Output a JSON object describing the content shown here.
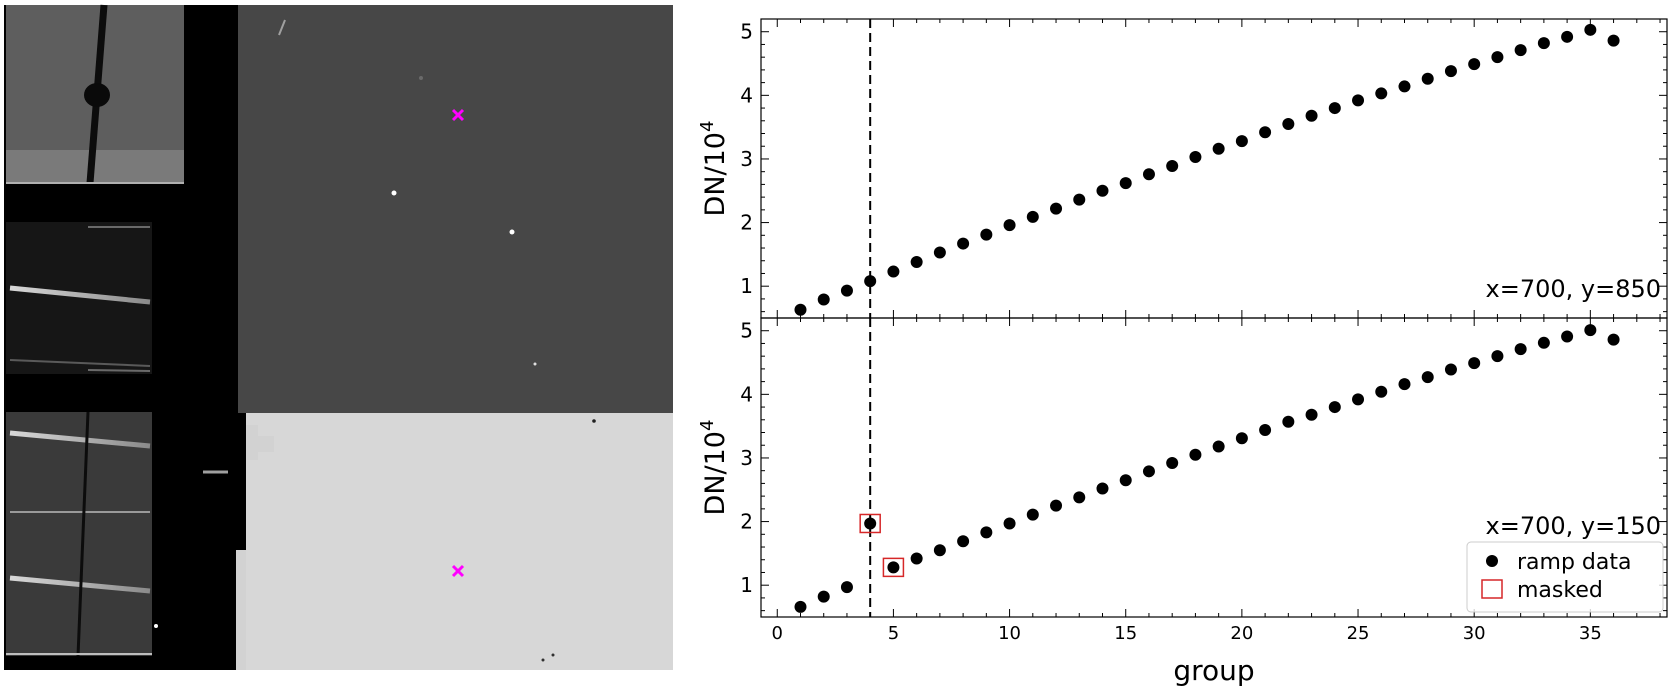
{
  "image_panel": {
    "markers": [
      {
        "label": "x=700, y=850",
        "color": "#ff00ff"
      },
      {
        "label": "x=700, y=150",
        "color": "#ff00ff"
      }
    ],
    "colors": {
      "dark_region": "#474747",
      "bright_region": "#d7d7d7",
      "frame": "#000000"
    }
  },
  "chart_data": [
    {
      "type": "scatter",
      "annotation": "x=700, y=850",
      "ylabel": "DN/10",
      "ylabel_exponent": "4",
      "xlim": [
        -0.7,
        38.3
      ],
      "ylim": [
        0.5,
        5.2
      ],
      "yticks": [
        "1",
        "2",
        "3",
        "4",
        "5"
      ],
      "vline_x": 4,
      "grid": false,
      "series": [
        {
          "x": [
            1,
            2,
            3,
            4,
            5,
            6,
            7,
            8,
            9,
            10,
            11,
            12,
            13,
            14,
            15,
            16,
            17,
            18,
            19,
            20,
            21,
            22,
            23,
            24,
            25,
            26,
            27,
            28,
            29,
            30,
            31,
            32,
            33,
            34,
            35,
            36
          ],
          "values": [
            0.63,
            0.79,
            0.93,
            1.08,
            1.23,
            1.38,
            1.53,
            1.67,
            1.81,
            1.96,
            2.09,
            2.22,
            2.36,
            2.5,
            2.62,
            2.76,
            2.89,
            3.03,
            3.16,
            3.28,
            3.42,
            3.55,
            3.68,
            3.8,
            3.92,
            4.03,
            4.14,
            4.26,
            4.38,
            4.49,
            4.6,
            4.71,
            4.82,
            4.92,
            5.03,
            4.86
          ]
        }
      ]
    },
    {
      "type": "scatter",
      "annotation": "x=700, y=150",
      "ylabel": "DN/10",
      "ylabel_exponent": "4",
      "xlabel": "group",
      "xlim": [
        -0.7,
        38.3
      ],
      "ylim": [
        0.5,
        5.2
      ],
      "xticks": [
        "0",
        "5",
        "10",
        "15",
        "20",
        "25",
        "30",
        "35"
      ],
      "yticks": [
        "1",
        "2",
        "3",
        "4",
        "5"
      ],
      "vline_x": 4,
      "grid": false,
      "legend_position": "bottom-right",
      "series": [
        {
          "name": "ramp data",
          "x": [
            1,
            2,
            3,
            4,
            5,
            6,
            7,
            8,
            9,
            10,
            11,
            12,
            13,
            14,
            15,
            16,
            17,
            18,
            19,
            20,
            21,
            22,
            23,
            24,
            25,
            26,
            27,
            28,
            29,
            30,
            31,
            32,
            33,
            34,
            35,
            36
          ],
          "values": [
            0.66,
            0.82,
            0.97,
            1.97,
            1.28,
            1.42,
            1.55,
            1.69,
            1.83,
            1.97,
            2.11,
            2.25,
            2.38,
            2.52,
            2.65,
            2.79,
            2.92,
            3.05,
            3.18,
            3.31,
            3.44,
            3.57,
            3.68,
            3.8,
            3.92,
            4.04,
            4.16,
            4.27,
            4.39,
            4.49,
            4.6,
            4.71,
            4.81,
            4.91,
            5.01,
            4.86
          ]
        },
        {
          "name": "masked",
          "x": [
            4,
            5
          ],
          "values": [
            1.97,
            1.28
          ],
          "color": "#d62728"
        }
      ]
    }
  ]
}
